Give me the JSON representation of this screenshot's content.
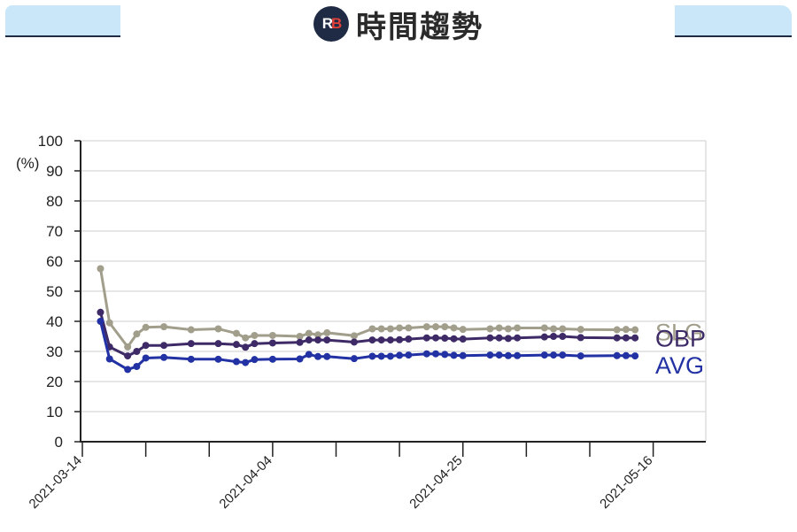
{
  "header": {
    "logo_text_r": "R",
    "logo_text_b": "B",
    "title": "時間趨勢"
  },
  "chart_data": {
    "type": "line",
    "ylabel": "(%)",
    "ylim": [
      0,
      100
    ],
    "yticks": [
      0,
      10,
      20,
      30,
      40,
      50,
      60,
      70,
      80,
      90,
      100
    ],
    "xlim": [
      "2021-03-14",
      "2021-05-22"
    ],
    "xtick_labels": [
      "2021-03-14",
      "2021-04-04",
      "2021-04-25",
      "2021-05-16"
    ],
    "x": [
      "2021-03-16",
      "2021-03-17",
      "2021-03-19",
      "2021-03-20",
      "2021-03-21",
      "2021-03-23",
      "2021-03-26",
      "2021-03-29",
      "2021-03-31",
      "2021-04-01",
      "2021-04-02",
      "2021-04-04",
      "2021-04-07",
      "2021-04-08",
      "2021-04-09",
      "2021-04-10",
      "2021-04-13",
      "2021-04-15",
      "2021-04-16",
      "2021-04-17",
      "2021-04-18",
      "2021-04-19",
      "2021-04-21",
      "2021-04-22",
      "2021-04-23",
      "2021-04-24",
      "2021-04-25",
      "2021-04-28",
      "2021-04-29",
      "2021-04-30",
      "2021-05-01",
      "2021-05-04",
      "2021-05-05",
      "2021-05-06",
      "2021-05-08",
      "2021-05-12",
      "2021-05-13",
      "2021-05-14"
    ],
    "grid": true,
    "series": [
      {
        "name": "SLG",
        "color": "#a29e8c",
        "values": [
          57.5,
          39.5,
          31.5,
          35.8,
          38.0,
          38.2,
          37.2,
          37.5,
          36.0,
          34.5,
          35.3,
          35.3,
          35.0,
          36.0,
          35.5,
          36.2,
          35.2,
          37.5,
          37.5,
          37.5,
          37.8,
          37.8,
          38.2,
          38.2,
          38.2,
          37.8,
          37.3,
          37.5,
          37.8,
          37.5,
          37.8,
          37.8,
          37.5,
          37.5,
          37.3,
          37.2,
          37.3,
          37.2
        ]
      },
      {
        "name": "OBP",
        "color": "#3d2a66",
        "values": [
          43.0,
          31.5,
          28.5,
          30.0,
          32.0,
          32.0,
          32.6,
          32.6,
          32.3,
          31.4,
          32.6,
          32.8,
          33.0,
          33.8,
          33.8,
          33.8,
          33.1,
          33.8,
          33.8,
          33.8,
          33.9,
          34.1,
          34.5,
          34.5,
          34.4,
          34.2,
          34.1,
          34.5,
          34.5,
          34.3,
          34.5,
          34.8,
          35.0,
          35.0,
          34.6,
          34.5,
          34.5,
          34.5
        ]
      },
      {
        "name": "AVG",
        "color": "#2231a3",
        "values": [
          40.0,
          27.5,
          24.0,
          25.0,
          27.8,
          28.0,
          27.4,
          27.4,
          26.6,
          26.3,
          27.3,
          27.4,
          27.5,
          29.0,
          28.3,
          28.3,
          27.6,
          28.4,
          28.4,
          28.4,
          28.7,
          28.8,
          29.2,
          29.2,
          29.0,
          28.7,
          28.6,
          28.8,
          28.8,
          28.6,
          28.6,
          28.8,
          28.8,
          28.8,
          28.5,
          28.6,
          28.6,
          28.5
        ]
      }
    ]
  }
}
